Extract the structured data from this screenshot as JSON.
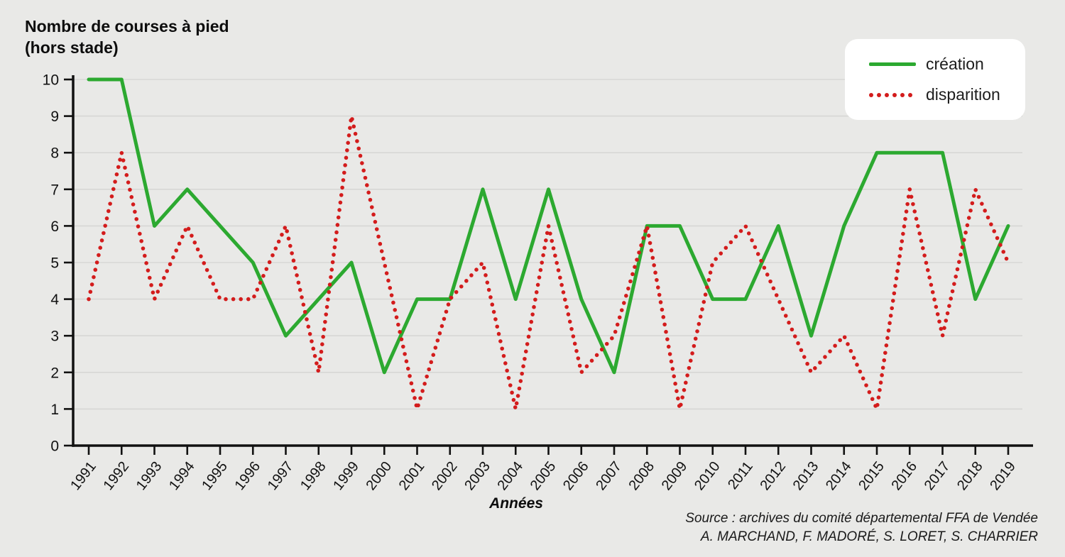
{
  "title": {
    "line1": "Nombre de courses à pied",
    "line2": "(hors stade)"
  },
  "legend": {
    "items": [
      {
        "label": "création",
        "color": "#2ca930",
        "style": "solid"
      },
      {
        "label": "disparition",
        "color": "#d31c1c",
        "style": "dotted"
      }
    ]
  },
  "x_axis": {
    "label": "Années"
  },
  "source": {
    "line1": "Source : archives du comité départemental FFA de Vendée",
    "line2": "A. MARCHAND, F. MADORÉ, S. LORET, S. CHARRIER"
  },
  "colors": {
    "background": "#e9e9e7",
    "gridline": "#d7d7d5",
    "axis": "#111111",
    "creation": "#2ca930",
    "disparition": "#d31c1c",
    "legend_background": "#ffffff"
  },
  "chart_data": {
    "type": "line",
    "title": "Nombre de courses à pied (hors stade)",
    "xlabel": "Années",
    "ylabel": "",
    "ylim": [
      0,
      10
    ],
    "y_ticks": [
      0,
      1,
      2,
      3,
      4,
      5,
      6,
      7,
      8,
      9,
      10
    ],
    "grid": true,
    "legend_position": "top-right",
    "x": [
      1991,
      1992,
      1993,
      1994,
      1995,
      1996,
      1997,
      1998,
      1999,
      2000,
      2001,
      2002,
      2003,
      2004,
      2005,
      2006,
      2007,
      2008,
      2009,
      2010,
      2011,
      2012,
      2013,
      2014,
      2015,
      2016,
      2017,
      2018,
      2019
    ],
    "series": [
      {
        "name": "création",
        "color": "#2ca930",
        "line_style": "solid",
        "values": [
          10,
          10,
          6,
          7,
          6,
          5,
          3,
          4,
          5,
          2,
          4,
          4,
          7,
          4,
          7,
          4,
          2,
          6,
          6,
          4,
          4,
          6,
          3,
          6,
          8,
          8,
          8,
          4,
          6
        ]
      },
      {
        "name": "disparition",
        "color": "#d31c1c",
        "line_style": "dotted",
        "values": [
          4,
          8,
          4,
          6,
          4,
          4,
          6,
          2,
          9,
          5,
          1,
          4,
          5,
          1,
          6,
          2,
          3,
          6,
          1,
          5,
          6,
          4,
          2,
          3,
          1,
          7,
          3,
          7,
          5
        ]
      }
    ]
  }
}
